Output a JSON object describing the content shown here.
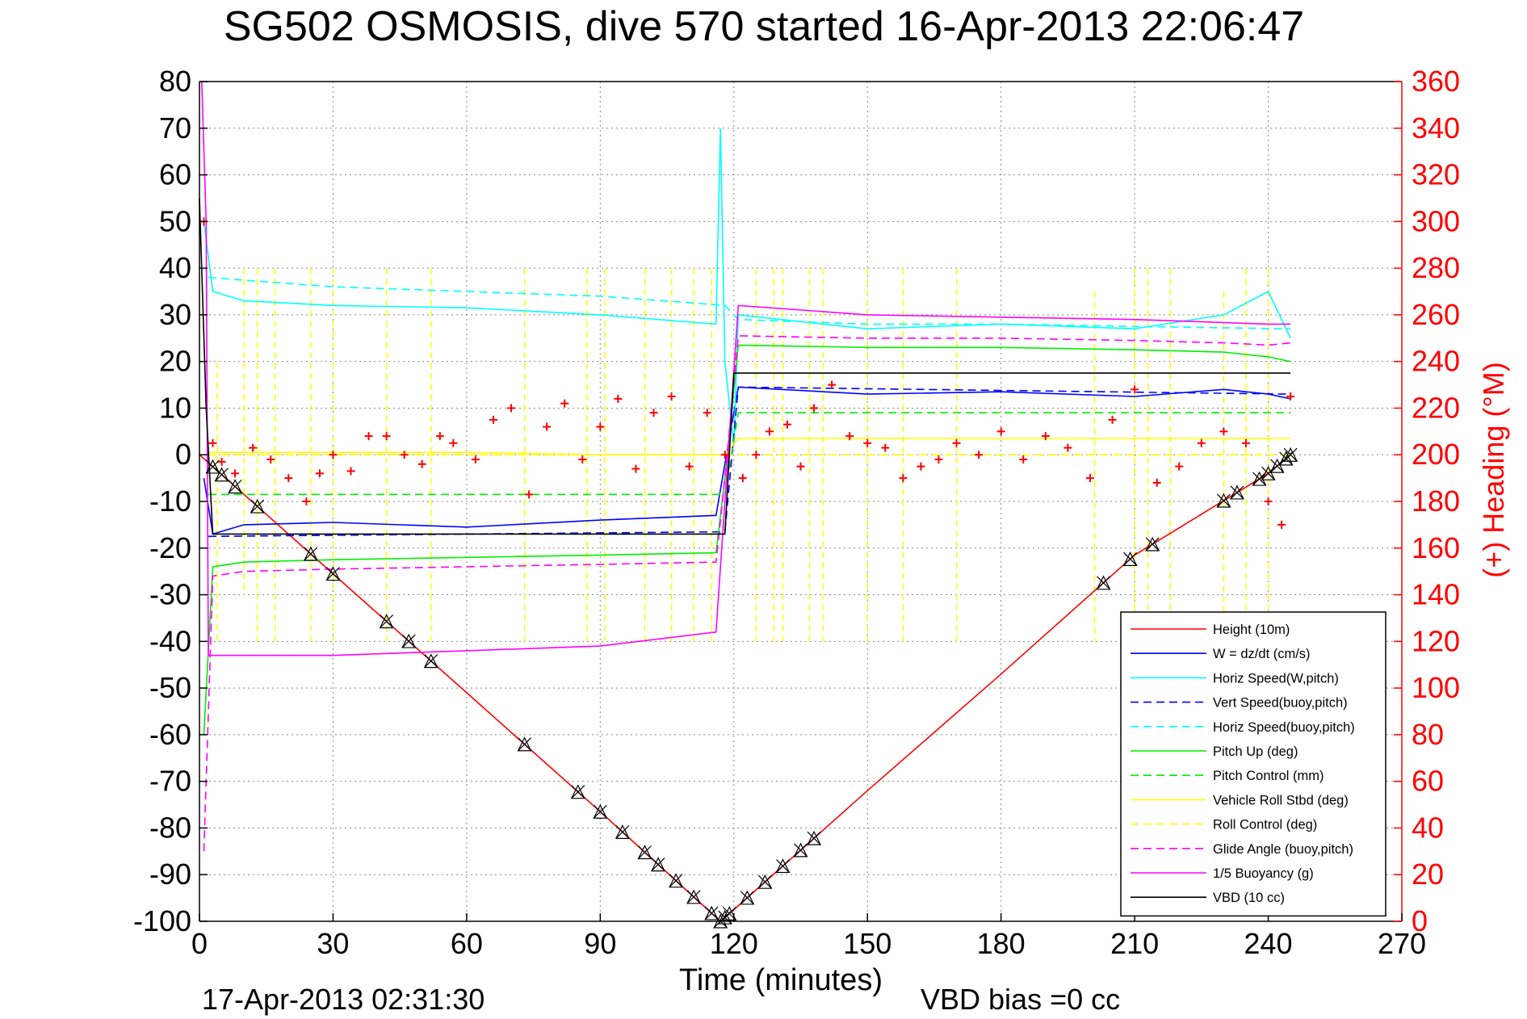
{
  "chart_data": {
    "type": "line",
    "title": "SG502 OSMOSIS, dive 570 started 16-Apr-2013 22:06:47",
    "xlabel": "Time (minutes)",
    "ylabel_right": "(+) Heading (°M)",
    "footer_left": "17-Apr-2013 02:31:30",
    "footer_right": "VBD bias =0 cc",
    "xlim": [
      0,
      270
    ],
    "ylim_left": [
      -100,
      80
    ],
    "ylim_right": [
      0,
      360
    ],
    "grid": true,
    "legend_position": "bottom-right",
    "x_ticks": [
      0,
      30,
      60,
      90,
      120,
      150,
      180,
      210,
      240,
      270
    ],
    "y_ticks_left": [
      80,
      70,
      60,
      50,
      40,
      30,
      20,
      10,
      0,
      -10,
      -20,
      -30,
      -40,
      -50,
      -60,
      -70,
      -80,
      -90,
      -100
    ],
    "y_ticks_right": [
      360,
      340,
      320,
      300,
      280,
      260,
      240,
      220,
      200,
      180,
      160,
      140,
      120,
      100,
      80,
      60,
      40,
      20,
      0
    ],
    "colors": {
      "axis_right": "#ff0000",
      "height": "#ff0000",
      "w": "#0000ff",
      "horiz_speed": "#00ffff",
      "pitch": "#00ee00",
      "roll": "#ffff00",
      "glide": "#ff00ff",
      "vbd": "#000000"
    },
    "series": [
      {
        "name": "Height (10m)",
        "style": "solid",
        "color": "#ff0000",
        "x": [
          0,
          30,
          60,
          90,
          117,
          120,
          150,
          180,
          210,
          240,
          245
        ],
        "y": [
          0,
          -25.5,
          -51,
          -76.5,
          -100,
          -97.5,
          -72,
          -47,
          -21.5,
          -4,
          0
        ]
      },
      {
        "name": "W = dz/dt (cm/s)",
        "style": "solid",
        "color": "#0000ff",
        "x": [
          1,
          3,
          10,
          30,
          60,
          90,
          116,
          118,
          121,
          150,
          180,
          210,
          230,
          240,
          245
        ],
        "y": [
          -5,
          -17,
          -15,
          -14.5,
          -15.5,
          -14,
          -13,
          -2,
          14.5,
          13,
          13.5,
          12.5,
          14,
          13,
          12
        ]
      },
      {
        "name": "Horiz Speed(W,pitch)",
        "style": "solid",
        "color": "#00ffff",
        "x": [
          1,
          3,
          10,
          30,
          60,
          90,
          116,
          117,
          118,
          120,
          121,
          150,
          180,
          210,
          230,
          240,
          245
        ],
        "y": [
          50,
          35,
          33,
          32,
          31.5,
          30,
          28,
          70,
          20,
          2,
          30,
          27,
          28,
          27,
          30,
          35,
          25
        ]
      },
      {
        "name": "Vert Speed(buoy,pitch)",
        "style": "dashed",
        "color": "#0000ff",
        "x": [
          2,
          118,
          121,
          245
        ],
        "y": [
          -17.5,
          -16.5,
          14.5,
          13
        ]
      },
      {
        "name": "Horiz Speed(buoy,pitch)",
        "style": "dashed",
        "color": "#00ffff",
        "x": [
          2,
          30,
          60,
          90,
          118,
          121,
          150,
          180,
          210,
          245
        ],
        "y": [
          38,
          36,
          35,
          34,
          32,
          29,
          28,
          28,
          27.5,
          27
        ]
      },
      {
        "name": "Pitch Up (deg)",
        "style": "solid",
        "color": "#00ee00",
        "x": [
          1,
          3,
          10,
          30,
          60,
          90,
          116,
          118,
          121,
          150,
          180,
          210,
          230,
          240,
          245
        ],
        "y": [
          -60,
          -24,
          -23,
          -22.5,
          -22,
          -21.5,
          -21,
          -5,
          23.5,
          23,
          23,
          22.5,
          22,
          21,
          20
        ]
      },
      {
        "name": "Pitch Control (mm)",
        "style": "dashed",
        "color": "#00ee00",
        "x": [
          2,
          118,
          121,
          245
        ],
        "y": [
          -8.5,
          -8.5,
          9,
          9
        ]
      },
      {
        "name": "Vehicle Roll Stbd (deg)",
        "style": "solid",
        "color": "#ffff00",
        "x": [
          2,
          30,
          60,
          90,
          118,
          121,
          150,
          180,
          210,
          240,
          245
        ],
        "y": [
          0.5,
          0.5,
          0.5,
          0,
          0,
          3.5,
          3.5,
          3.5,
          3.5,
          3.5,
          3.5
        ]
      },
      {
        "name": "Roll Control (deg)",
        "style": "dashed",
        "color": "#ffff00",
        "x": [
          2,
          245
        ],
        "y": [
          0,
          0
        ],
        "spikes_x": [
          4,
          10,
          13,
          17,
          25,
          30,
          42,
          52,
          73,
          87,
          91,
          100,
          106,
          111,
          115,
          125,
          129,
          131,
          137,
          140,
          150,
          158,
          170,
          201,
          210,
          213,
          218,
          230,
          235,
          240
        ],
        "spikes_top": [
          20,
          40,
          40,
          40,
          40,
          40,
          40,
          40,
          40,
          40,
          40,
          40,
          40,
          40,
          40,
          40,
          40,
          40,
          40,
          40,
          40,
          40,
          40,
          35,
          40,
          40,
          40,
          35,
          40,
          40
        ],
        "spikes_bottom": [
          -40,
          -30,
          -40,
          -40,
          -40,
          -40,
          -40,
          -40,
          -40,
          -40,
          -40,
          -40,
          -40,
          -40,
          -40,
          -40,
          -40,
          -40,
          -40,
          -40,
          -40,
          -40,
          -40,
          -40,
          -40,
          -40,
          -40,
          -40,
          -40,
          -40
        ]
      },
      {
        "name": "Glide Angle (buoy,pitch)",
        "style": "dashed",
        "color": "#ff00ff",
        "x": [
          1,
          3,
          10,
          30,
          60,
          90,
          116,
          118,
          121,
          150,
          180,
          210,
          230,
          240,
          245
        ],
        "y": [
          -85,
          -26,
          -25,
          -24.5,
          -24,
          -23.5,
          -23,
          -5,
          25.5,
          25,
          25,
          24.5,
          24,
          23.5,
          24
        ]
      },
      {
        "name": "1/5 Buoyancy (g)",
        "style": "solid",
        "color": "#ff00ff",
        "x": [
          0.5,
          1.5,
          2,
          30,
          60,
          90,
          116,
          121,
          150,
          180,
          210,
          240,
          245
        ],
        "y": [
          80,
          50,
          -43,
          -43,
          -42,
          -41,
          -38,
          32,
          30,
          29.5,
          29,
          28,
          28
        ]
      },
      {
        "name": "VBD (10 cc)",
        "style": "solid",
        "color": "#000000",
        "x": [
          0,
          1.5,
          3,
          118,
          120,
          245
        ],
        "y": [
          55,
          10,
          -17,
          -17,
          17.5,
          17.5
        ]
      }
    ],
    "heading": {
      "name": "(+) Heading",
      "x": [
        1,
        3,
        5,
        8,
        12,
        16,
        20,
        24,
        27,
        30,
        34,
        38,
        42,
        46,
        50,
        54,
        57,
        62,
        66,
        70,
        74,
        78,
        82,
        86,
        90,
        94,
        98,
        102,
        106,
        110,
        114,
        118,
        122,
        125,
        128,
        132,
        135,
        138,
        142,
        146,
        150,
        154,
        158,
        162,
        166,
        170,
        175,
        180,
        185,
        190,
        195,
        200,
        205,
        210,
        215,
        220,
        225,
        230,
        235,
        240,
        243,
        245
      ],
      "y": [
        300,
        205,
        197,
        192,
        203,
        198,
        190,
        180,
        192,
        200,
        193,
        208,
        208,
        200,
        196,
        208,
        205,
        198,
        215,
        220,
        183,
        212,
        222,
        198,
        212,
        224,
        194,
        218,
        225,
        195,
        218,
        200,
        190,
        200,
        210,
        213,
        195,
        220,
        230,
        208,
        205,
        203,
        190,
        195,
        198,
        205,
        200,
        210,
        198,
        208,
        203,
        190,
        215,
        228,
        188,
        195,
        205,
        210,
        205,
        180,
        170,
        225
      ]
    },
    "markers_x": [
      3,
      5,
      8,
      13,
      25,
      30,
      42,
      47,
      52,
      73,
      85,
      90,
      95,
      100,
      103,
      107,
      111,
      115,
      117,
      118,
      119,
      123,
      127,
      131,
      135,
      138,
      203,
      209,
      214,
      230,
      233,
      238,
      240,
      242,
      244,
      245
    ]
  }
}
